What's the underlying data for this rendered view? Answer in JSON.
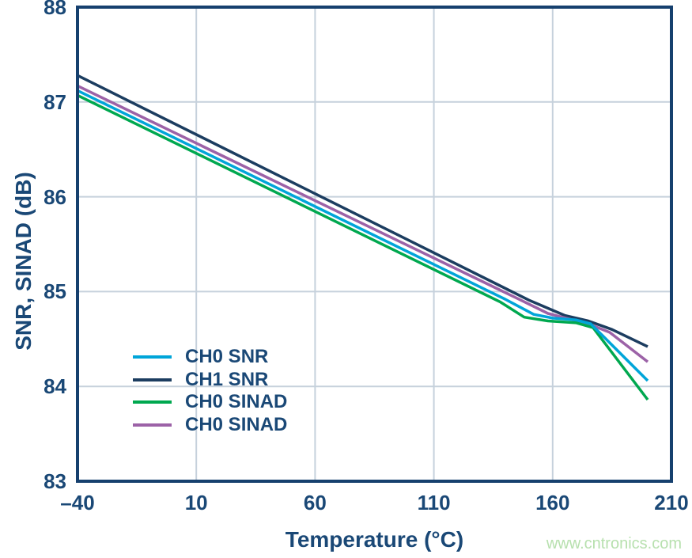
{
  "figure": {
    "x_axis_title": "Temperature (°C)",
    "y_axis_title": "SNR, SINAD (dB)",
    "watermark": "www.cntronics.com"
  },
  "colors": {
    "background": "#FFFFFF",
    "axis": "#16406E",
    "text": "#1A4876",
    "gridline": "#C6D1DC",
    "watermark": "#B7E0AE"
  },
  "chart_data": {
    "type": "line",
    "title": "",
    "xlabel": "Temperature (°C)",
    "ylabel": "SNR, SINAD (dB)",
    "xlim": [
      -40,
      210
    ],
    "ylim": [
      83,
      88
    ],
    "x_ticks": [
      -40,
      10,
      60,
      110,
      160,
      210
    ],
    "x_tick_labels": [
      "–40",
      "10",
      "60",
      "110",
      "160",
      "210"
    ],
    "y_ticks": [
      83,
      84,
      85,
      86,
      87,
      88
    ],
    "y_tick_labels": [
      "83",
      "84",
      "85",
      "86",
      "87",
      "88"
    ],
    "grid": true,
    "legend_position": "inside lower-left",
    "draw_order": [
      1,
      3,
      2,
      0
    ],
    "series": [
      {
        "name": "CH0 SNR",
        "color": "#00A5D9",
        "points": [
          [
            -40,
            87.12
          ],
          [
            140,
            84.92
          ],
          [
            152,
            84.76
          ],
          [
            160,
            84.72
          ],
          [
            170,
            84.7
          ],
          [
            176,
            84.66
          ],
          [
            200,
            84.06
          ]
        ]
      },
      {
        "name": "CH1 SNR",
        "color": "#1C3D60",
        "points": [
          [
            -40,
            87.28
          ],
          [
            150,
            84.91
          ],
          [
            165,
            84.75
          ],
          [
            175,
            84.69
          ],
          [
            185,
            84.6
          ],
          [
            200,
            84.42
          ]
        ]
      },
      {
        "name": "CH0 SINAD",
        "color": "#00A84F",
        "points": [
          [
            -40,
            87.07
          ],
          [
            138,
            84.89
          ],
          [
            148,
            84.73
          ],
          [
            158,
            84.69
          ],
          [
            170,
            84.67
          ],
          [
            177,
            84.62
          ],
          [
            200,
            83.86
          ]
        ]
      },
      {
        "name": "CH0 SINAD",
        "color": "#9C62A7",
        "points": [
          [
            -40,
            87.17
          ],
          [
            145,
            84.93
          ],
          [
            158,
            84.77
          ],
          [
            167,
            84.71
          ],
          [
            176,
            84.65
          ],
          [
            184,
            84.57
          ],
          [
            200,
            84.26
          ]
        ]
      }
    ]
  }
}
